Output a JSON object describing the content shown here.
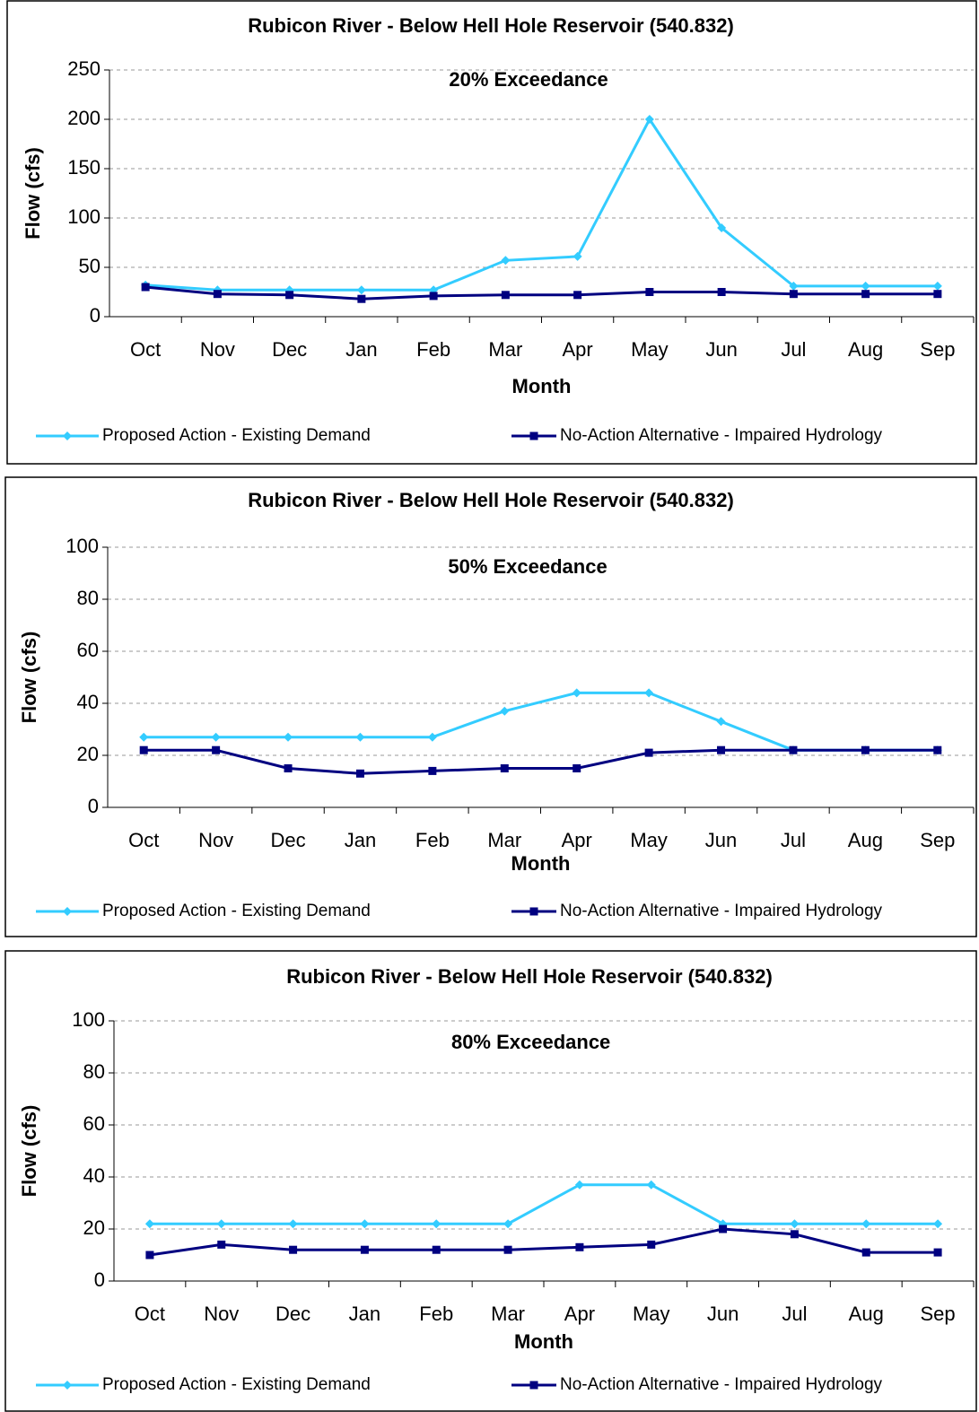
{
  "chart_data": [
    {
      "type": "line",
      "title": "Rubicon River - Below Hell Hole Reservoir (540.832)",
      "annotation": "20% Exceedance",
      "x_label": "Month",
      "y_label": "Flow (cfs)",
      "categories": [
        "Oct",
        "Nov",
        "Dec",
        "Jan",
        "Feb",
        "Mar",
        "Apr",
        "May",
        "Jun",
        "Jul",
        "Aug",
        "Sep"
      ],
      "series": [
        {
          "name": "Proposed Action - Existing Demand",
          "color": "#33ccff",
          "marker": "diamond",
          "values": [
            32,
            27,
            27,
            27,
            27,
            57,
            61,
            200,
            90,
            31,
            31,
            31
          ]
        },
        {
          "name": "No-Action Alternative - Impaired Hydrology",
          "color": "#000080",
          "marker": "square",
          "values": [
            30,
            23,
            22,
            18,
            21,
            22,
            22,
            25,
            25,
            23,
            23,
            23
          ]
        }
      ],
      "ylim": [
        0,
        250
      ],
      "yticks": [
        0,
        50,
        100,
        150,
        200,
        250
      ],
      "grid": true,
      "legend": "bottom"
    },
    {
      "type": "line",
      "title": "Rubicon River - Below Hell Hole Reservoir (540.832)",
      "annotation": "50% Exceedance",
      "x_label": "Month",
      "y_label": "Flow (cfs)",
      "categories": [
        "Oct",
        "Nov",
        "Dec",
        "Jan",
        "Feb",
        "Mar",
        "Apr",
        "May",
        "Jun",
        "Jul",
        "Aug",
        "Sep"
      ],
      "series": [
        {
          "name": "Proposed Action - Existing Demand",
          "color": "#33ccff",
          "marker": "diamond",
          "values": [
            27,
            27,
            27,
            27,
            27,
            37,
            44,
            44,
            33,
            22,
            22,
            22
          ]
        },
        {
          "name": "No-Action Alternative - Impaired Hydrology",
          "color": "#000080",
          "marker": "square",
          "values": [
            22,
            22,
            15,
            13,
            14,
            15,
            15,
            21,
            22,
            22,
            22,
            22
          ]
        }
      ],
      "ylim": [
        0,
        100
      ],
      "yticks": [
        0,
        20,
        40,
        60,
        80,
        100
      ],
      "grid": true,
      "legend": "bottom"
    },
    {
      "type": "line",
      "title": "Rubicon River - Below Hell Hole Reservoir (540.832)",
      "annotation": "80% Exceedance",
      "x_label": "Month",
      "y_label": "Flow (cfs)",
      "categories": [
        "Oct",
        "Nov",
        "Dec",
        "Jan",
        "Feb",
        "Mar",
        "Apr",
        "May",
        "Jun",
        "Jul",
        "Aug",
        "Sep"
      ],
      "series": [
        {
          "name": "Proposed Action - Existing Demand",
          "color": "#33ccff",
          "marker": "diamond",
          "values": [
            22,
            22,
            22,
            22,
            22,
            22,
            37,
            37,
            22,
            22,
            22,
            22
          ]
        },
        {
          "name": "No-Action Alternative - Impaired Hydrology",
          "color": "#000080",
          "marker": "square",
          "values": [
            10,
            14,
            12,
            12,
            12,
            12,
            13,
            14,
            20,
            18,
            11,
            11
          ]
        }
      ],
      "ylim": [
        0,
        100
      ],
      "yticks": [
        0,
        20,
        40,
        60,
        80,
        100
      ],
      "grid": true,
      "legend": "bottom"
    }
  ]
}
